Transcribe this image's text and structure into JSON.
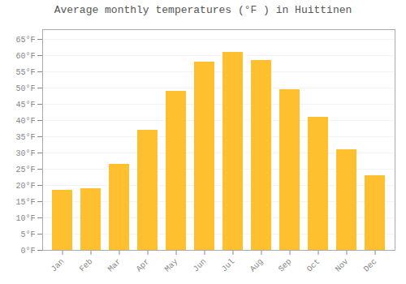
{
  "chart_data": {
    "type": "bar",
    "title": "Average monthly temperatures (°F ) in Huittinen",
    "categories": [
      "Jan",
      "Feb",
      "Mar",
      "Apr",
      "May",
      "Jun",
      "Jul",
      "Aug",
      "Sep",
      "Oct",
      "Nov",
      "Dec"
    ],
    "values": [
      18.5,
      19.0,
      26.5,
      37.0,
      49.0,
      58.0,
      61.0,
      58.5,
      49.5,
      41.0,
      31.0,
      23.0
    ],
    "color": "#FFC030",
    "ylim": [
      0,
      68
    ],
    "yticks": [
      {
        "value": 0,
        "label": "0°F"
      },
      {
        "value": 5,
        "label": "5°F"
      },
      {
        "value": 10,
        "label": "10°F"
      },
      {
        "value": 15,
        "label": "15°F"
      },
      {
        "value": 20,
        "label": "20°F"
      },
      {
        "value": 25,
        "label": "25°F"
      },
      {
        "value": 30,
        "label": "30°F"
      },
      {
        "value": 35,
        "label": "35°F"
      },
      {
        "value": 40,
        "label": "40°F"
      },
      {
        "value": 45,
        "label": "45°F"
      },
      {
        "value": 50,
        "label": "50°F"
      },
      {
        "value": 55,
        "label": "55°F"
      },
      {
        "value": 60,
        "label": "60°F"
      },
      {
        "value": 65,
        "label": "65°F"
      }
    ],
    "grid": true
  }
}
